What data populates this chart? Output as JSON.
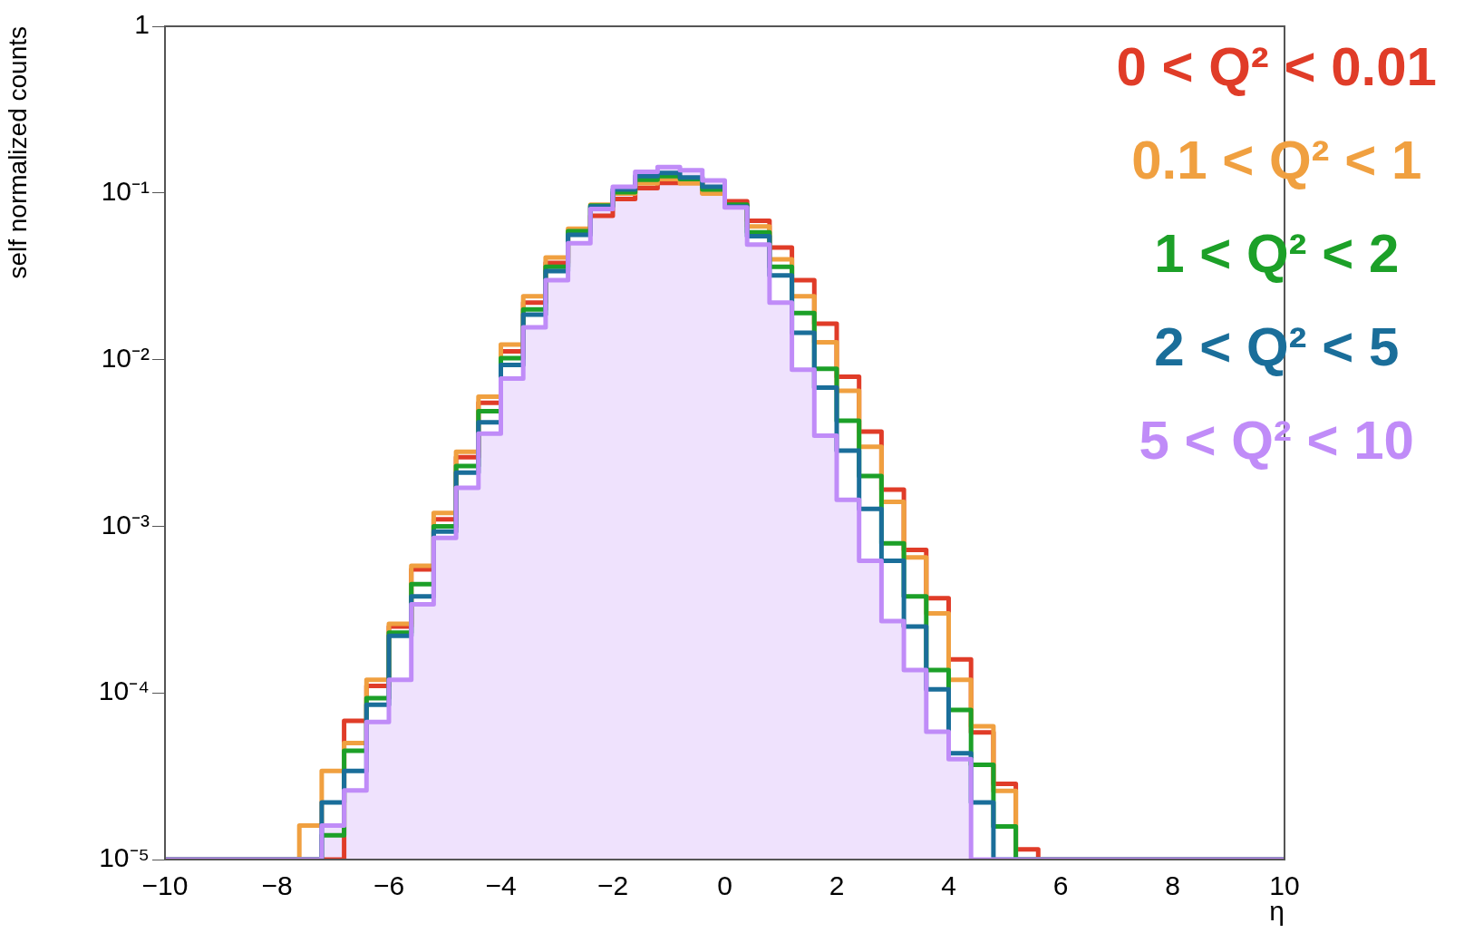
{
  "chart_data": {
    "type": "histogram",
    "xlabel": "η",
    "ylabel": "self normalized counts",
    "bins": [
      -10,
      -9.6,
      -9.2,
      -8.8,
      -8.4,
      -8,
      -7.6,
      -7.2,
      -6.8,
      -6.4,
      -6,
      -5.6,
      -5.2,
      -4.8,
      -4.4,
      -4,
      -3.6,
      -3.2,
      -2.8,
      -2.4,
      -2,
      -1.6,
      -1.2,
      -0.8,
      -0.4,
      0,
      0.4,
      0.8,
      1.2,
      1.6,
      2,
      2.4,
      2.8,
      3.2,
      3.6,
      4,
      4.4,
      4.8,
      5.2,
      5.6,
      6,
      6.4,
      6.8,
      7.2,
      7.6,
      8,
      8.4,
      8.8,
      9.2,
      9.6,
      10
    ],
    "series": [
      {
        "name": "0 < Q² < 0.01",
        "color": "#e03c28",
        "values": [
          null,
          null,
          null,
          null,
          null,
          null,
          null,
          null,
          6.8e-05,
          0.00011,
          0.00025,
          0.00055,
          0.0011,
          0.0026,
          0.0055,
          0.0112,
          0.022,
          0.038,
          0.058,
          0.073,
          0.092,
          0.107,
          0.115,
          0.116,
          0.1,
          0.089,
          0.068,
          0.047,
          0.03,
          0.0164,
          0.0079,
          0.0037,
          0.00166,
          0.00072,
          0.00037,
          0.000159,
          5.8e-05,
          2.85e-05,
          1.15e-05,
          null,
          null,
          null,
          null,
          null,
          null,
          null,
          null,
          null,
          null,
          null
        ]
      },
      {
        "name": "0.1 < Q² < 1",
        "color": "#f0a040",
        "values": [
          null,
          null,
          null,
          null,
          null,
          null,
          1.6e-05,
          3.4e-05,
          5e-05,
          0.00012,
          0.00026,
          0.00058,
          0.0012,
          0.0028,
          0.006,
          0.0123,
          0.024,
          0.041,
          0.061,
          0.085,
          0.099,
          0.114,
          0.121,
          0.114,
          0.099,
          0.084,
          0.063,
          0.04,
          0.024,
          0.0127,
          0.0065,
          0.003,
          0.0014,
          0.00065,
          0.0003,
          0.00012,
          6.3e-05,
          2.58e-05,
          null,
          null,
          null,
          null,
          null,
          null,
          null,
          null,
          null,
          null,
          null,
          null
        ]
      },
      {
        "name": "1 < Q² < 2",
        "color": "#1ca028",
        "values": [
          null,
          null,
          null,
          null,
          null,
          null,
          null,
          1.4e-05,
          4.5e-05,
          9.3e-05,
          0.00023,
          0.00045,
          0.001,
          0.0023,
          0.0049,
          0.0102,
          0.02,
          0.036,
          0.059,
          0.084,
          0.101,
          0.12,
          0.126,
          0.121,
          0.105,
          0.085,
          0.058,
          0.036,
          0.019,
          0.0088,
          0.0043,
          0.002,
          0.00079,
          0.00038,
          0.000137,
          7.9e-05,
          3.7e-05,
          1.58e-05,
          null,
          null,
          null,
          null,
          null,
          null,
          null,
          null,
          null,
          null,
          null,
          null
        ]
      },
      {
        "name": "2 < Q² < 5",
        "color": "#1a6e9a",
        "values": [
          null,
          null,
          null,
          null,
          null,
          null,
          null,
          2.2e-05,
          3.4e-05,
          8.5e-05,
          0.00022,
          0.00038,
          0.00093,
          0.0021,
          0.0042,
          0.0093,
          0.0186,
          0.034,
          0.056,
          0.083,
          0.105,
          0.126,
          0.132,
          0.124,
          0.109,
          0.083,
          0.055,
          0.032,
          0.0145,
          0.0068,
          0.00284,
          0.00127,
          0.00062,
          0.00025,
          0.000105,
          4.35e-05,
          2.2e-05,
          null,
          null,
          null,
          null,
          null,
          null,
          null,
          null,
          null,
          null,
          null,
          null,
          null
        ]
      },
      {
        "name": "5 < Q² < 10",
        "color": "#c08cf8",
        "values": [
          null,
          null,
          null,
          null,
          null,
          null,
          null,
          1.6e-05,
          2.6e-05,
          6.7e-05,
          0.00012,
          0.00034,
          0.00085,
          0.0017,
          0.0036,
          0.0077,
          0.0156,
          0.03,
          0.05,
          0.08,
          0.109,
          0.134,
          0.143,
          0.137,
          0.119,
          0.082,
          0.049,
          0.022,
          0.0087,
          0.0035,
          0.00144,
          0.00062,
          0.00027,
          0.000137,
          5.85e-05,
          4e-05,
          null,
          null,
          null,
          null,
          null,
          null,
          null,
          null,
          null,
          null,
          null,
          null,
          null,
          null
        ]
      }
    ],
    "log": true,
    "xlim": [
      -10,
      10
    ],
    "ylim": [
      1e-05,
      1
    ],
    "xticks": [
      {
        "value": -10,
        "label": "−10"
      },
      {
        "value": -8,
        "label": "−8"
      },
      {
        "value": -6,
        "label": "−6"
      },
      {
        "value": -4,
        "label": "−4"
      },
      {
        "value": -2,
        "label": "−2"
      },
      0,
      2,
      4,
      6,
      8,
      10
    ],
    "yticks": [
      {
        "value": 1e-05,
        "label": "10⁻⁵"
      },
      {
        "value": 0.0001,
        "label": "10⁻⁴"
      },
      {
        "value": 0.001,
        "label": "10⁻³"
      },
      {
        "value": 0.01,
        "label": "10⁻²"
      },
      {
        "value": 0.1,
        "label": "10⁻¹"
      },
      1
    ],
    "legend": "top right"
  }
}
